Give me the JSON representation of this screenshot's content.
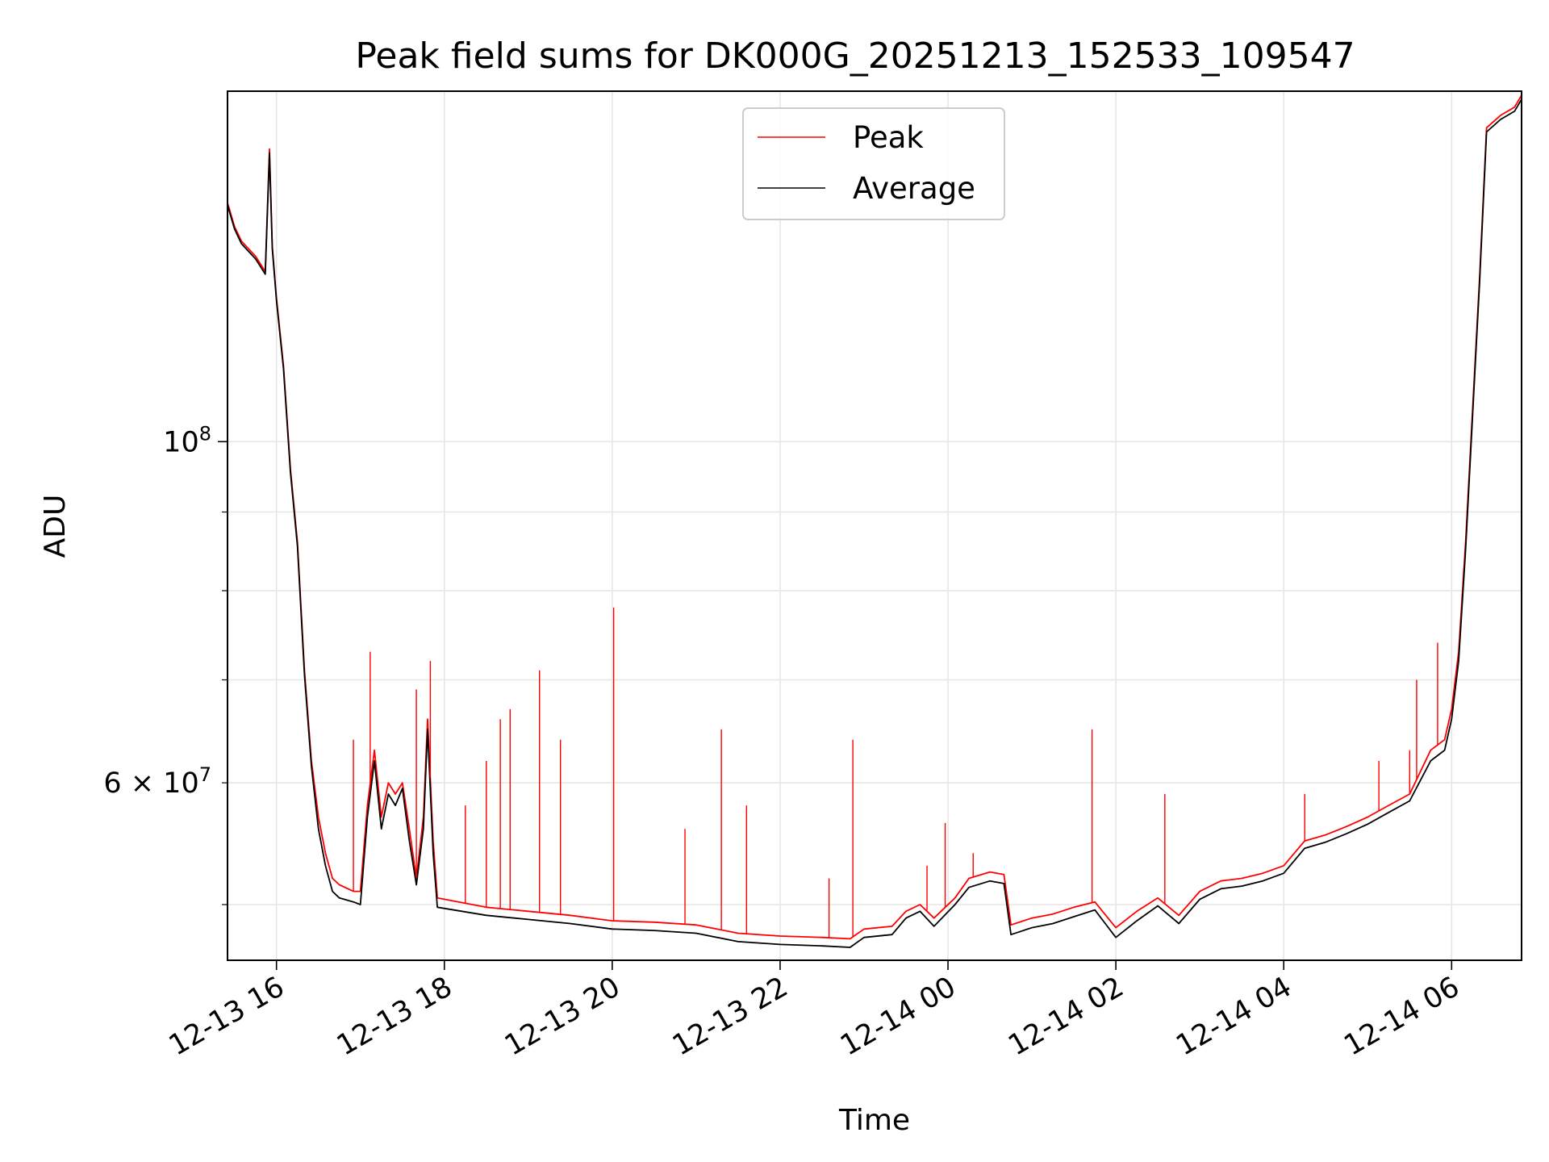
{
  "chart_data": {
    "type": "line",
    "title": "Peak field sums for DK000G_20251213_152533_109547",
    "xlabel": "Time",
    "ylabel": "ADU",
    "x_axis": {
      "type": "datetime",
      "range": [
        "2025-12-13T15:25",
        "2025-12-14T06:50"
      ],
      "ticks": [
        "2025-12-13T16:00",
        "2025-12-13T18:00",
        "2025-12-13T20:00",
        "2025-12-13T22:00",
        "2025-12-14T00:00",
        "2025-12-14T02:00",
        "2025-12-14T04:00",
        "2025-12-14T06:00"
      ],
      "tick_labels": [
        "12-13 16",
        "12-13 18",
        "12-13 20",
        "12-13 22",
        "12-14 00",
        "12-14 02",
        "12-14 04",
        "12-14 06"
      ],
      "tick_rotation_deg": 30
    },
    "y_axis": {
      "scale": "log",
      "range": [
        46000000,
        169000000
      ],
      "major_ticks": [
        100000000
      ],
      "major_tick_labels": [
        "10^8"
      ],
      "minor_ticks": [
        50000000,
        60000000,
        70000000,
        80000000,
        90000000
      ],
      "minor_tick_labels": [
        "",
        "6 × 10^7",
        "",
        "",
        ""
      ]
    },
    "grid": true,
    "legend": {
      "location": "upper center",
      "entries": [
        "Peak",
        "Average"
      ]
    },
    "series": [
      {
        "name": "Peak",
        "color": "#ff0000",
        "points": [
          [
            "2025-12-13T15:25",
            143000000
          ],
          [
            "2025-12-13T15:30",
            138000000
          ],
          [
            "2025-12-13T15:35",
            135000000
          ],
          [
            "2025-12-13T15:45",
            132000000
          ],
          [
            "2025-12-13T15:52",
            129000000
          ],
          [
            "2025-12-13T15:55",
            155000000
          ],
          [
            "2025-12-13T15:57",
            134000000
          ],
          [
            "2025-12-13T16:00",
            124000000
          ],
          [
            "2025-12-13T16:05",
            112000000
          ],
          [
            "2025-12-13T16:10",
            96000000
          ],
          [
            "2025-12-13T16:15",
            86000000
          ],
          [
            "2025-12-13T16:20",
            71000000
          ],
          [
            "2025-12-13T16:25",
            62000000
          ],
          [
            "2025-12-13T16:30",
            57000000
          ],
          [
            "2025-12-13T16:35",
            54000000
          ],
          [
            "2025-12-13T16:40",
            52000000
          ],
          [
            "2025-12-13T16:45",
            51500000
          ],
          [
            "2025-12-13T16:55",
            51000000
          ],
          [
            "2025-12-13T17:00",
            51000000
          ],
          [
            "2025-12-13T17:05",
            58000000
          ],
          [
            "2025-12-13T17:10",
            63000000
          ],
          [
            "2025-12-13T17:15",
            57000000
          ],
          [
            "2025-12-13T17:20",
            60000000
          ],
          [
            "2025-12-13T17:25",
            59000000
          ],
          [
            "2025-12-13T17:30",
            60000000
          ],
          [
            "2025-12-13T17:35",
            56000000
          ],
          [
            "2025-12-13T17:40",
            52000000
          ],
          [
            "2025-12-13T17:45",
            57000000
          ],
          [
            "2025-12-13T17:48",
            66000000
          ],
          [
            "2025-12-13T17:52",
            55000000
          ],
          [
            "2025-12-13T17:55",
            50500000
          ],
          [
            "2025-12-13T18:30",
            49800000
          ],
          [
            "2025-12-13T19:00",
            49500000
          ],
          [
            "2025-12-13T19:30",
            49200000
          ],
          [
            "2025-12-13T20:00",
            48800000
          ],
          [
            "2025-12-13T20:30",
            48700000
          ],
          [
            "2025-12-13T21:00",
            48500000
          ],
          [
            "2025-12-13T21:30",
            47900000
          ],
          [
            "2025-12-13T22:00",
            47700000
          ],
          [
            "2025-12-13T22:30",
            47600000
          ],
          [
            "2025-12-13T22:50",
            47500000
          ],
          [
            "2025-12-13T23:00",
            48200000
          ],
          [
            "2025-12-13T23:20",
            48400000
          ],
          [
            "2025-12-13T23:30",
            49500000
          ],
          [
            "2025-12-13T23:40",
            50000000
          ],
          [
            "2025-12-13T23:50",
            49000000
          ],
          [
            "2025-12-14T00:05",
            50500000
          ],
          [
            "2025-12-14T00:15",
            52000000
          ],
          [
            "2025-12-14T00:30",
            52500000
          ],
          [
            "2025-12-14T00:40",
            52300000
          ],
          [
            "2025-12-14T00:45",
            48500000
          ],
          [
            "2025-12-14T01:00",
            49000000
          ],
          [
            "2025-12-14T01:15",
            49300000
          ],
          [
            "2025-12-14T01:30",
            49800000
          ],
          [
            "2025-12-14T01:45",
            50200000
          ],
          [
            "2025-12-14T02:00",
            48300000
          ],
          [
            "2025-12-14T02:15",
            49500000
          ],
          [
            "2025-12-14T02:30",
            50500000
          ],
          [
            "2025-12-14T02:45",
            49200000
          ],
          [
            "2025-12-14T03:00",
            51000000
          ],
          [
            "2025-12-14T03:15",
            51800000
          ],
          [
            "2025-12-14T03:30",
            52000000
          ],
          [
            "2025-12-14T03:45",
            52400000
          ],
          [
            "2025-12-14T04:00",
            53000000
          ],
          [
            "2025-12-14T04:15",
            55000000
          ],
          [
            "2025-12-14T04:30",
            55500000
          ],
          [
            "2025-12-14T04:45",
            56200000
          ],
          [
            "2025-12-14T05:00",
            57000000
          ],
          [
            "2025-12-14T05:15",
            58000000
          ],
          [
            "2025-12-14T05:30",
            59000000
          ],
          [
            "2025-12-14T05:45",
            63000000
          ],
          [
            "2025-12-14T05:55",
            64000000
          ],
          [
            "2025-12-14T06:00",
            67000000
          ],
          [
            "2025-12-14T06:05",
            73000000
          ],
          [
            "2025-12-14T06:10",
            86000000
          ],
          [
            "2025-12-14T06:15",
            105000000
          ],
          [
            "2025-12-14T06:20",
            128000000
          ],
          [
            "2025-12-14T06:25",
            160000000
          ],
          [
            "2025-12-14T06:35",
            163000000
          ],
          [
            "2025-12-14T06:45",
            165000000
          ],
          [
            "2025-12-14T06:50",
            168000000
          ]
        ],
        "spikes": [
          [
            "2025-12-13T16:55",
            64000000
          ],
          [
            "2025-12-13T17:07",
            73000000
          ],
          [
            "2025-12-13T17:40",
            69000000
          ],
          [
            "2025-12-13T17:50",
            72000000
          ],
          [
            "2025-12-13T18:15",
            58000000
          ],
          [
            "2025-12-13T18:30",
            62000000
          ],
          [
            "2025-12-13T18:40",
            66000000
          ],
          [
            "2025-12-13T18:47",
            67000000
          ],
          [
            "2025-12-13T19:08",
            71000000
          ],
          [
            "2025-12-13T19:23",
            64000000
          ],
          [
            "2025-12-13T20:01",
            78000000
          ],
          [
            "2025-12-13T20:52",
            56000000
          ],
          [
            "2025-12-13T21:18",
            65000000
          ],
          [
            "2025-12-13T21:36",
            58000000
          ],
          [
            "2025-12-13T22:35",
            52000000
          ],
          [
            "2025-12-13T22:52",
            64000000
          ],
          [
            "2025-12-13T23:45",
            53000000
          ],
          [
            "2025-12-13T23:58",
            56500000
          ],
          [
            "2025-12-14T00:18",
            54000000
          ],
          [
            "2025-12-14T01:43",
            65000000
          ],
          [
            "2025-12-14T02:35",
            59000000
          ],
          [
            "2025-12-14T04:15",
            59000000
          ],
          [
            "2025-12-14T05:08",
            62000000
          ],
          [
            "2025-12-14T05:30",
            63000000
          ],
          [
            "2025-12-14T05:35",
            70000000
          ],
          [
            "2025-12-14T05:50",
            74000000
          ]
        ]
      },
      {
        "name": "Average",
        "color": "#000000",
        "points": [
          [
            "2025-12-13T15:25",
            142500000
          ],
          [
            "2025-12-13T15:30",
            137500000
          ],
          [
            "2025-12-13T15:35",
            134500000
          ],
          [
            "2025-12-13T15:45",
            131500000
          ],
          [
            "2025-12-13T15:52",
            128500000
          ],
          [
            "2025-12-13T15:55",
            154000000
          ],
          [
            "2025-12-13T15:57",
            133500000
          ],
          [
            "2025-12-13T16:00",
            123500000
          ],
          [
            "2025-12-13T16:05",
            111500000
          ],
          [
            "2025-12-13T16:10",
            95500000
          ],
          [
            "2025-12-13T16:15",
            85500000
          ],
          [
            "2025-12-13T16:20",
            70500000
          ],
          [
            "2025-12-13T16:25",
            61500000
          ],
          [
            "2025-12-13T16:30",
            56000000
          ],
          [
            "2025-12-13T16:35",
            53000000
          ],
          [
            "2025-12-13T16:40",
            51000000
          ],
          [
            "2025-12-13T16:45",
            50500000
          ],
          [
            "2025-12-13T16:55",
            50200000
          ],
          [
            "2025-12-13T17:00",
            50000000
          ],
          [
            "2025-12-13T17:05",
            57000000
          ],
          [
            "2025-12-13T17:10",
            62000000
          ],
          [
            "2025-12-13T17:15",
            56000000
          ],
          [
            "2025-12-13T17:20",
            59000000
          ],
          [
            "2025-12-13T17:25",
            58000000
          ],
          [
            "2025-12-13T17:30",
            59500000
          ],
          [
            "2025-12-13T17:35",
            55000000
          ],
          [
            "2025-12-13T17:40",
            51500000
          ],
          [
            "2025-12-13T17:45",
            56000000
          ],
          [
            "2025-12-13T17:48",
            65000000
          ],
          [
            "2025-12-13T17:52",
            54000000
          ],
          [
            "2025-12-13T17:55",
            49800000
          ],
          [
            "2025-12-13T18:30",
            49200000
          ],
          [
            "2025-12-13T19:00",
            48900000
          ],
          [
            "2025-12-13T19:30",
            48600000
          ],
          [
            "2025-12-13T20:00",
            48200000
          ],
          [
            "2025-12-13T20:30",
            48100000
          ],
          [
            "2025-12-13T21:00",
            47900000
          ],
          [
            "2025-12-13T21:30",
            47300000
          ],
          [
            "2025-12-13T22:00",
            47100000
          ],
          [
            "2025-12-13T22:30",
            47000000
          ],
          [
            "2025-12-13T22:50",
            46900000
          ],
          [
            "2025-12-13T23:00",
            47600000
          ],
          [
            "2025-12-13T23:20",
            47800000
          ],
          [
            "2025-12-13T23:30",
            49000000
          ],
          [
            "2025-12-13T23:40",
            49500000
          ],
          [
            "2025-12-13T23:50",
            48400000
          ],
          [
            "2025-12-14T00:05",
            50000000
          ],
          [
            "2025-12-14T00:15",
            51300000
          ],
          [
            "2025-12-14T00:30",
            51800000
          ],
          [
            "2025-12-14T00:40",
            51600000
          ],
          [
            "2025-12-14T00:45",
            47800000
          ],
          [
            "2025-12-14T01:00",
            48300000
          ],
          [
            "2025-12-14T01:15",
            48600000
          ],
          [
            "2025-12-14T01:30",
            49100000
          ],
          [
            "2025-12-14T01:45",
            49600000
          ],
          [
            "2025-12-14T02:00",
            47600000
          ],
          [
            "2025-12-14T02:15",
            48800000
          ],
          [
            "2025-12-14T02:30",
            49900000
          ],
          [
            "2025-12-14T02:45",
            48600000
          ],
          [
            "2025-12-14T03:00",
            50400000
          ],
          [
            "2025-12-14T03:15",
            51200000
          ],
          [
            "2025-12-14T03:30",
            51400000
          ],
          [
            "2025-12-14T03:45",
            51800000
          ],
          [
            "2025-12-14T04:00",
            52400000
          ],
          [
            "2025-12-14T04:15",
            54400000
          ],
          [
            "2025-12-14T04:30",
            54900000
          ],
          [
            "2025-12-14T04:45",
            55600000
          ],
          [
            "2025-12-14T05:00",
            56400000
          ],
          [
            "2025-12-14T05:15",
            57400000
          ],
          [
            "2025-12-14T05:30",
            58400000
          ],
          [
            "2025-12-14T05:45",
            62000000
          ],
          [
            "2025-12-14T05:55",
            63000000
          ],
          [
            "2025-12-14T06:00",
            66000000
          ],
          [
            "2025-12-14T06:05",
            72000000
          ],
          [
            "2025-12-14T06:10",
            85000000
          ],
          [
            "2025-12-14T06:15",
            104000000
          ],
          [
            "2025-12-14T06:20",
            127000000
          ],
          [
            "2025-12-14T06:25",
            159000000
          ],
          [
            "2025-12-14T06:35",
            162000000
          ],
          [
            "2025-12-14T06:45",
            164000000
          ],
          [
            "2025-12-14T06:50",
            167000000
          ]
        ]
      }
    ]
  }
}
